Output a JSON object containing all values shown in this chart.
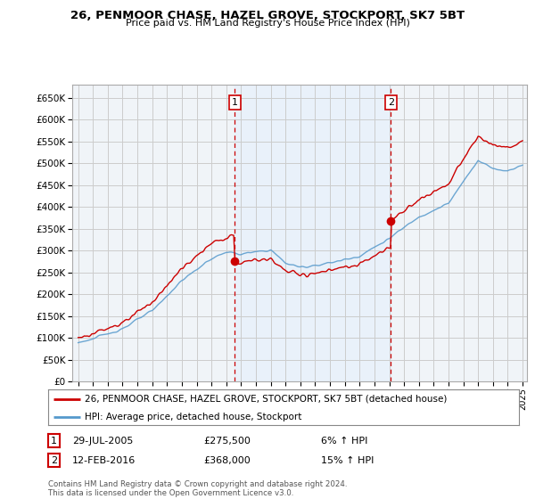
{
  "title": "26, PENMOOR CHASE, HAZEL GROVE, STOCKPORT, SK7 5BT",
  "subtitle": "Price paid vs. HM Land Registry's House Price Index (HPI)",
  "legend_line1": "26, PENMOOR CHASE, HAZEL GROVE, STOCKPORT, SK7 5BT (detached house)",
  "legend_line2": "HPI: Average price, detached house, Stockport",
  "annotation1_date": "29-JUL-2005",
  "annotation1_price": "£275,500",
  "annotation1_hpi": "6% ↑ HPI",
  "annotation2_date": "12-FEB-2016",
  "annotation2_price": "£368,000",
  "annotation2_hpi": "15% ↑ HPI",
  "footer": "Contains HM Land Registry data © Crown copyright and database right 2024.\nThis data is licensed under the Open Government Licence v3.0.",
  "red_color": "#cc0000",
  "blue_color": "#5599cc",
  "shade_color": "#ddeeff",
  "background_color": "#ffffff",
  "grid_color": "#cccccc",
  "ylim": [
    0,
    680000
  ],
  "yticks": [
    0,
    50000,
    100000,
    150000,
    200000,
    250000,
    300000,
    350000,
    400000,
    450000,
    500000,
    550000,
    600000,
    650000
  ],
  "purchase1_year": 2005.57,
  "purchase1_value": 275500,
  "purchase2_year": 2016.12,
  "purchase2_value": 368000
}
